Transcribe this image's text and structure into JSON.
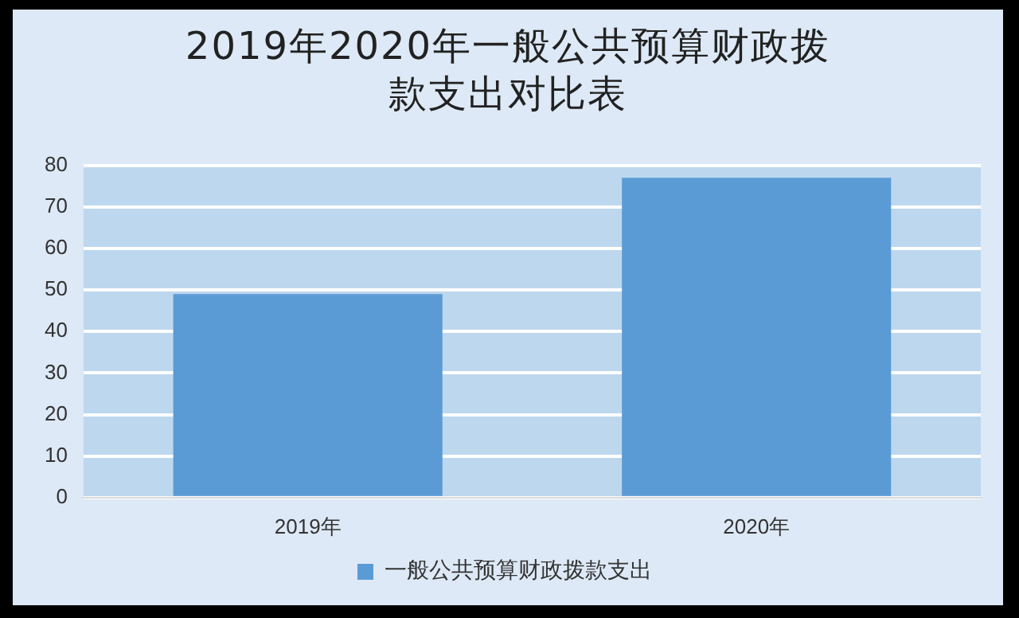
{
  "chart_data": {
    "type": "bar",
    "title": "2019年2020年一般公共预算财政拨款支出对比表",
    "categories": [
      "2019年",
      "2020年"
    ],
    "series": [
      {
        "name": "一般公共预算财政拨款支出",
        "color": "#5b9bd5",
        "values": [
          49,
          77
        ]
      }
    ],
    "ylim": [
      0,
      80
    ],
    "yticks": [
      0,
      10,
      20,
      30,
      40,
      50,
      60,
      70,
      80
    ],
    "grid": "y",
    "legend": "bottom"
  }
}
